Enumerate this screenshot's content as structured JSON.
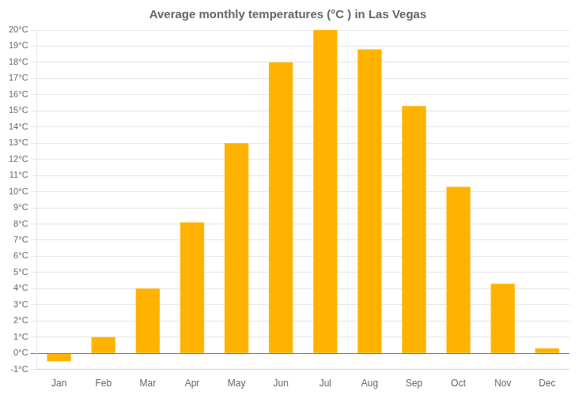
{
  "chart_data": {
    "type": "bar",
    "title": "Average monthly temperatures (°C ) in Las Vegas",
    "categories": [
      "Jan",
      "Feb",
      "Mar",
      "Apr",
      "May",
      "Jun",
      "Jul",
      "Aug",
      "Sep",
      "Oct",
      "Nov",
      "Dec"
    ],
    "values": [
      -0.5,
      1.0,
      4.0,
      8.1,
      13.0,
      18.0,
      20.0,
      18.8,
      15.3,
      10.3,
      4.3,
      0.3
    ],
    "color": "#FFB300",
    "ylim": [
      -1,
      20
    ],
    "yticks": [
      {
        "value": -1,
        "label": "-1°C"
      },
      {
        "value": 0,
        "label": "0°C"
      },
      {
        "value": 1,
        "label": "1°C"
      },
      {
        "value": 2,
        "label": "2°C"
      },
      {
        "value": 3,
        "label": "3°C"
      },
      {
        "value": 4,
        "label": "4°C"
      },
      {
        "value": 5,
        "label": "5°C"
      },
      {
        "value": 6,
        "label": "6°C"
      },
      {
        "value": 7,
        "label": "7°C"
      },
      {
        "value": 8,
        "label": "8°C"
      },
      {
        "value": 9,
        "label": "9°C"
      },
      {
        "value": 10,
        "label": "10°C"
      },
      {
        "value": 11,
        "label": "11°C"
      },
      {
        "value": 12,
        "label": "12°C"
      },
      {
        "value": 13,
        "label": "13°C"
      },
      {
        "value": 14,
        "label": "14°C"
      },
      {
        "value": 15,
        "label": "15°C"
      },
      {
        "value": 16,
        "label": "16°C"
      },
      {
        "value": 17,
        "label": "17°C"
      },
      {
        "value": 18,
        "label": "18°C"
      },
      {
        "value": 19,
        "label": "19°C"
      },
      {
        "value": 20,
        "label": "20°C"
      }
    ],
    "grid": true
  }
}
